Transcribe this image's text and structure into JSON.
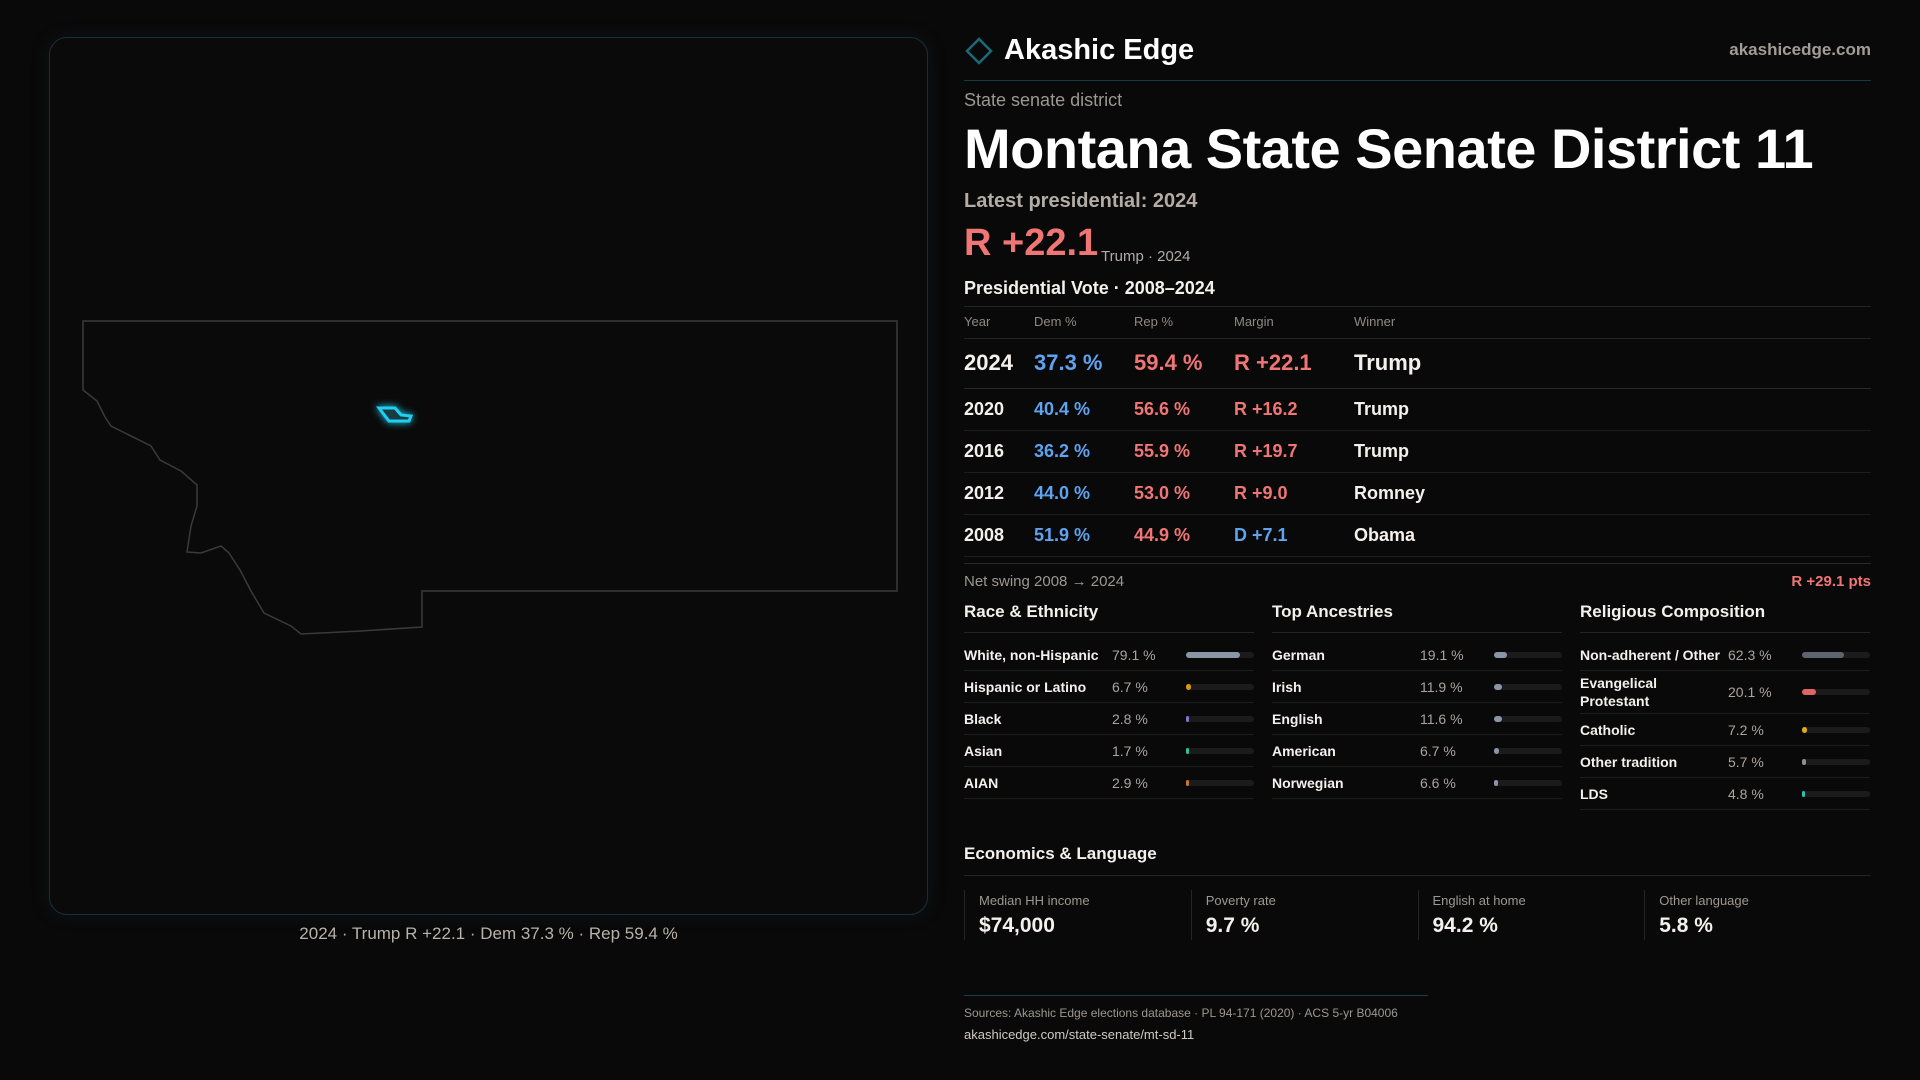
{
  "brand": {
    "name": "Akashic Edge",
    "site": "akashicedge.com"
  },
  "kicker": "State senate district",
  "title": "Montana State Senate District 11",
  "latest": {
    "label": "Latest presidential: 2024",
    "margin": "R +22.1",
    "sub": "Trump · 2024"
  },
  "map": {
    "caption": "2024 · Trump R +22.1 · Dem 37.3 % · Rep 59.4 %",
    "district_color": "#1fd0f0"
  },
  "presidential": {
    "title": "Presidential Vote · 2008–2024",
    "headers": [
      "Year",
      "Dem %",
      "Rep %",
      "Margin",
      "Winner"
    ],
    "rows": [
      {
        "year": "2024",
        "dem": "37.3 %",
        "rep": "59.4 %",
        "margin": "R +22.1",
        "winner": "Trump",
        "party": "R"
      },
      {
        "year": "2020",
        "dem": "40.4 %",
        "rep": "56.6 %",
        "margin": "R +16.2",
        "winner": "Trump",
        "party": "R"
      },
      {
        "year": "2016",
        "dem": "36.2 %",
        "rep": "55.9 %",
        "margin": "R +19.7",
        "winner": "Trump",
        "party": "R"
      },
      {
        "year": "2012",
        "dem": "44.0 %",
        "rep": "53.0 %",
        "margin": "R +9.0",
        "winner": "Romney",
        "party": "R"
      },
      {
        "year": "2008",
        "dem": "51.9 %",
        "rep": "44.9 %",
        "margin": "D +7.1",
        "winner": "Obama",
        "party": "D"
      }
    ],
    "swing_label": "Net swing 2008 → 2024",
    "swing_value": "R +29.1 pts"
  },
  "sections": [
    {
      "title": "Race & Ethnicity",
      "items": [
        {
          "label": "White, non-Hispanic",
          "value": "79.1 %",
          "pct": 79.1,
          "color": "#8a96a8"
        },
        {
          "label": "Hispanic or Latino",
          "value": "6.7 %",
          "pct": 6.7,
          "color": "#d9960f"
        },
        {
          "label": "Black",
          "value": "2.8 %",
          "pct": 2.8,
          "color": "#8a6fd0"
        },
        {
          "label": "Asian",
          "value": "1.7 %",
          "pct": 1.7,
          "color": "#2fc09a"
        },
        {
          "label": "AIAN",
          "value": "2.9 %",
          "pct": 2.9,
          "color": "#c9782a"
        }
      ]
    },
    {
      "title": "Top Ancestries",
      "items": [
        {
          "label": "German",
          "value": "19.1 %",
          "pct": 19.1,
          "color": "#8a96a8"
        },
        {
          "label": "Irish",
          "value": "11.9 %",
          "pct": 11.9,
          "color": "#8a96a8"
        },
        {
          "label": "English",
          "value": "11.6 %",
          "pct": 11.6,
          "color": "#8a96a8"
        },
        {
          "label": "American",
          "value": "6.7 %",
          "pct": 6.7,
          "color": "#8a96a8"
        },
        {
          "label": "Norwegian",
          "value": "6.6 %",
          "pct": 6.6,
          "color": "#8a96a8"
        }
      ]
    },
    {
      "title": "Religious Composition",
      "items": [
        {
          "label": "Non-adherent / Other",
          "value": "62.3 %",
          "pct": 62.3,
          "color": "#5d6470"
        },
        {
          "label": "Evangelical Protestant",
          "value": "20.1 %",
          "pct": 20.1,
          "color": "#e06464"
        },
        {
          "label": "Catholic",
          "value": "7.2 %",
          "pct": 7.2,
          "color": "#e0a81a"
        },
        {
          "label": "Other tradition",
          "value": "5.7 %",
          "pct": 5.7,
          "color": "#8a8f99"
        },
        {
          "label": "LDS",
          "value": "4.8 %",
          "pct": 4.8,
          "color": "#2fc0b0"
        }
      ]
    }
  ],
  "economics": {
    "title": "Economics & Language",
    "cards": [
      {
        "label": "Median HH income",
        "value": "$74,000"
      },
      {
        "label": "Poverty rate",
        "value": "9.7 %"
      },
      {
        "label": "English at home",
        "value": "94.2 %"
      },
      {
        "label": "Other language",
        "value": "5.8 %"
      }
    ]
  },
  "footer": {
    "sources": "Sources: Akashic Edge elections database · PL 94-171 (2020) · ACS 5-yr B04006",
    "url": "akashicedge.com/state-senate/mt-sd-11"
  }
}
